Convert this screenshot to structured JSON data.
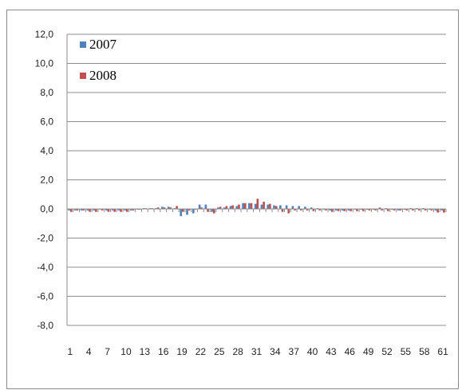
{
  "chart_data": {
    "type": "bar",
    "ylim": [
      -8,
      12
    ],
    "ytick_step": 2,
    "ytick_labels": [
      "12,0",
      "10,0",
      "8,0",
      "6,0",
      "4,0",
      "2,0",
      "0,0",
      "-2,0",
      "-4,0",
      "-6,0",
      "-8,0"
    ],
    "categories": [
      "1",
      "2",
      "3",
      "4",
      "5",
      "6",
      "7",
      "8",
      "9",
      "10",
      "11",
      "12",
      "13",
      "14",
      "15",
      "16",
      "17",
      "18",
      "19",
      "20",
      "21",
      "22",
      "23",
      "24",
      "25",
      "26",
      "27",
      "28",
      "29",
      "30",
      "31",
      "32",
      "33",
      "34",
      "35",
      "36",
      "37",
      "38",
      "39",
      "40",
      "41",
      "42",
      "43",
      "44",
      "45",
      "46",
      "47",
      "48",
      "49",
      "50",
      "51",
      "52",
      "53",
      "54",
      "55",
      "56",
      "57",
      "58",
      "59",
      "60",
      "61"
    ],
    "xtick_labels": [
      "1",
      "4",
      "7",
      "10",
      "13",
      "16",
      "19",
      "22",
      "25",
      "28",
      "31",
      "34",
      "37",
      "40",
      "43",
      "46",
      "49",
      "52",
      "55",
      "58",
      "61"
    ],
    "grid": true,
    "legend": "top-left",
    "series": [
      {
        "name": "2007",
        "color": "#4f81bd",
        "values": [
          -0.1,
          -0.1,
          -0.1,
          -0.1,
          -0.1,
          0,
          -0.1,
          -0.1,
          -0.1,
          -0.1,
          -0.1,
          0,
          0.05,
          0.05,
          0.05,
          0.15,
          0.15,
          0.05,
          -0.5,
          -0.4,
          -0.3,
          0.3,
          0.3,
          -0.2,
          0.1,
          0.1,
          0.2,
          0.2,
          0.4,
          0.4,
          0.35,
          0.3,
          0.3,
          0.25,
          0.25,
          0.25,
          0.2,
          0.2,
          0.15,
          0.1,
          0.05,
          0,
          -0.1,
          -0.1,
          -0.1,
          -0.1,
          0,
          -0.05,
          -0.05,
          -0.05,
          0.1,
          0.05,
          -0.05,
          -0.1,
          -0.05,
          0.05,
          0.05,
          0.05,
          -0.05,
          -0.1,
          -0.1
        ]
      },
      {
        "name": "2008",
        "color": "#c0504d",
        "values": [
          -0.2,
          -0.1,
          -0.1,
          -0.2,
          -0.2,
          -0.1,
          -0.2,
          -0.2,
          -0.2,
          -0.2,
          -0.1,
          -0.05,
          0.05,
          0.05,
          0.1,
          0.1,
          0.1,
          0.2,
          -0.2,
          -0.1,
          -0.05,
          0.1,
          -0.2,
          -0.3,
          0.15,
          0.2,
          0.25,
          0.3,
          0.4,
          0.4,
          0.7,
          0.5,
          0.35,
          0.2,
          -0.2,
          -0.3,
          -0.1,
          -0.1,
          -0.1,
          -0.15,
          -0.1,
          -0.1,
          -0.2,
          -0.15,
          -0.15,
          -0.15,
          -0.15,
          -0.15,
          -0.1,
          -0.1,
          -0.1,
          -0.15,
          -0.1,
          -0.1,
          -0.1,
          -0.1,
          -0.1,
          -0.1,
          -0.1,
          -0.25,
          -0.25
        ]
      }
    ]
  }
}
